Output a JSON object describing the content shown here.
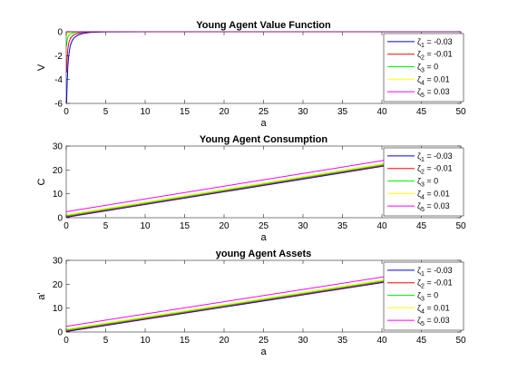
{
  "chart_data": [
    {
      "type": "line",
      "title": "Young Agent Value Function",
      "xlabel": "a",
      "ylabel": "V",
      "xlim": [
        0,
        50
      ],
      "ylim": [
        -6,
        0
      ],
      "xticks": [
        0,
        5,
        10,
        15,
        20,
        25,
        30,
        35,
        40,
        45,
        50
      ],
      "yticks": [
        0,
        -2,
        -4,
        -6
      ],
      "legend_position": "top-right",
      "grid": false,
      "series": [
        {
          "name": "ζ1 = -0.03",
          "sub": "1",
          "value": "-0.03",
          "color": "#0000ff",
          "x": [
            0.05,
            0.1,
            0.2,
            0.3,
            0.5,
            0.75,
            1,
            1.5,
            2,
            3,
            4,
            5,
            10,
            50
          ],
          "y": [
            -6.0,
            -4.6,
            -3.0,
            -2.1,
            -1.2,
            -0.75,
            -0.5,
            -0.27,
            -0.16,
            -0.06,
            -0.03,
            -0.01,
            0,
            0
          ]
        },
        {
          "name": "ζ2 = -0.01",
          "sub": "2",
          "value": "-0.01",
          "color": "#ff0000",
          "x": [
            0.05,
            0.1,
            0.2,
            0.3,
            0.5,
            0.75,
            1,
            1.5,
            2,
            3,
            4,
            5,
            10,
            50
          ],
          "y": [
            -3.4,
            -2.4,
            -1.5,
            -1.0,
            -0.6,
            -0.37,
            -0.25,
            -0.13,
            -0.07,
            -0.03,
            -0.01,
            0,
            0,
            0
          ]
        },
        {
          "name": "ζ3 = 0",
          "sub": "3",
          "value": "0",
          "color": "#00ff00",
          "x": [
            0.05,
            0.1,
            0.2,
            0.3,
            0.5,
            0.75,
            1,
            1.5,
            2,
            3,
            50
          ],
          "y": [
            -1.2,
            -0.8,
            -0.48,
            -0.33,
            -0.2,
            -0.12,
            -0.08,
            -0.04,
            -0.02,
            0,
            0
          ]
        },
        {
          "name": "ζ4 = 0.01",
          "sub": "4",
          "value": "0.01",
          "color": "#ffff00",
          "x": [
            0.05,
            0.1,
            0.2,
            0.5,
            1,
            2,
            50
          ],
          "y": [
            -0.3,
            -0.18,
            -0.1,
            -0.04,
            -0.02,
            0,
            0
          ]
        },
        {
          "name": "ζ5 = 0.03",
          "sub": "5",
          "value": "0.03",
          "color": "#ff00ff",
          "x": [
            0,
            50
          ],
          "y": [
            0,
            0
          ]
        }
      ]
    },
    {
      "type": "line",
      "title": "Young Agent Consumption",
      "xlabel": "a",
      "ylabel": "C",
      "xlim": [
        0,
        50
      ],
      "ylim": [
        0,
        30
      ],
      "xticks": [
        0,
        5,
        10,
        15,
        20,
        25,
        30,
        35,
        40,
        45,
        50
      ],
      "yticks": [
        0,
        10,
        20,
        30
      ],
      "legend_position": "top-right",
      "grid": false,
      "series": [
        {
          "name": "ζ1 = -0.03",
          "sub": "1",
          "value": "-0.03",
          "color": "#0000ff",
          "x": [
            0,
            50
          ],
          "y": [
            0.2,
            26.8
          ]
        },
        {
          "name": "ζ2 = -0.01",
          "sub": "2",
          "value": "-0.01",
          "color": "#ff0000",
          "x": [
            0,
            50
          ],
          "y": [
            0.5,
            27.1
          ]
        },
        {
          "name": "ζ3 = 0",
          "sub": "3",
          "value": "0",
          "color": "#00ff00",
          "x": [
            0,
            50
          ],
          "y": [
            0.8,
            27.4
          ]
        },
        {
          "name": "ζ4 = 0.01",
          "sub": "4",
          "value": "0.01",
          "color": "#ffff00",
          "x": [
            0,
            50
          ],
          "y": [
            1.2,
            27.9
          ]
        },
        {
          "name": "ζ5 = 0.03",
          "sub": "5",
          "value": "0.03",
          "color": "#ff00ff",
          "x": [
            0,
            50
          ],
          "y": [
            2.5,
            29.2
          ]
        }
      ]
    },
    {
      "type": "line",
      "title": "young Agent Assets",
      "xlabel": "a",
      "ylabel": "a'",
      "xlim": [
        0,
        50
      ],
      "ylim": [
        0,
        30
      ],
      "xticks": [
        0,
        5,
        10,
        15,
        20,
        25,
        30,
        35,
        40,
        45,
        50
      ],
      "yticks": [
        0,
        10,
        20,
        30
      ],
      "legend_position": "top-right",
      "grid": false,
      "series": [
        {
          "name": "ζ1 = -0.03",
          "sub": "1",
          "value": "-0.03",
          "color": "#0000ff",
          "x": [
            0,
            50
          ],
          "y": [
            0.2,
            25.8
          ]
        },
        {
          "name": "ζ2 = -0.01",
          "sub": "2",
          "value": "-0.01",
          "color": "#ff0000",
          "x": [
            0,
            50
          ],
          "y": [
            0.5,
            26.1
          ]
        },
        {
          "name": "ζ3 = 0",
          "sub": "3",
          "value": "0",
          "color": "#00ff00",
          "x": [
            0,
            50
          ],
          "y": [
            0.8,
            26.4
          ]
        },
        {
          "name": "ζ4 = 0.01",
          "sub": "4",
          "value": "0.01",
          "color": "#ffff00",
          "x": [
            0,
            50
          ],
          "y": [
            1.2,
            26.9
          ]
        },
        {
          "name": "ζ5 = 0.03",
          "sub": "5",
          "value": "0.03",
          "color": "#ff00ff",
          "x": [
            0,
            50
          ],
          "y": [
            2.4,
            28.1
          ]
        }
      ]
    }
  ]
}
